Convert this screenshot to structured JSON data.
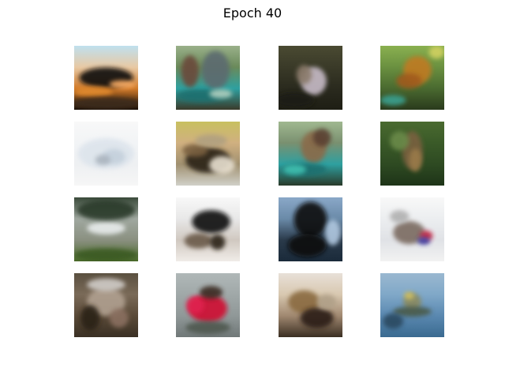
{
  "figure": {
    "title": "Epoch 40",
    "rows": 4,
    "cols": 4
  },
  "tiles": [
    {
      "name": "sample-r1c1",
      "bg": [
        "#bfe0ee",
        "#e8c9a4",
        "#d07a2a",
        "#140c06"
      ],
      "blobs": [
        [
          "#111111",
          0.5,
          0.5,
          0.42,
          0.16
        ],
        [
          "#e08a2e",
          0.3,
          0.72,
          0.3,
          0.08
        ],
        [
          "#ffb066",
          0.75,
          0.6,
          0.2,
          0.06
        ],
        [
          "#3a2a1e",
          0.5,
          0.9,
          0.55,
          0.1
        ]
      ]
    },
    {
      "name": "sample-r1c2",
      "bg": [
        "#9ab08a",
        "#6a8a5a",
        "#2ea0a0",
        "#3a3a2a"
      ],
      "blobs": [
        [
          "#5c6a70",
          0.62,
          0.38,
          0.22,
          0.3
        ],
        [
          "#1f7070",
          0.4,
          0.78,
          0.38,
          0.1
        ],
        [
          "#b0d0c0",
          0.7,
          0.75,
          0.18,
          0.07
        ],
        [
          "#6a4a3a",
          0.22,
          0.4,
          0.14,
          0.25
        ]
      ]
    },
    {
      "name": "sample-r1c3",
      "bg": [
        "#4a4a32",
        "#3a3a28",
        "#2a2a1e",
        "#1e1e14"
      ],
      "blobs": [
        [
          "#c8bcc8",
          0.55,
          0.55,
          0.2,
          0.22
        ],
        [
          "#8a7a6a",
          0.4,
          0.45,
          0.12,
          0.15
        ],
        [
          "#1a1a12",
          0.25,
          0.85,
          0.3,
          0.12
        ]
      ]
    },
    {
      "name": "sample-r1c4",
      "bg": [
        "#8ab050",
        "#6a9040",
        "#4a6a30",
        "#2a3a1c"
      ],
      "blobs": [
        [
          "#c07a20",
          0.58,
          0.38,
          0.22,
          0.22
        ],
        [
          "#a05a1a",
          0.45,
          0.55,
          0.2,
          0.12
        ],
        [
          "#d0d060",
          0.88,
          0.1,
          0.12,
          0.1
        ],
        [
          "#3aa090",
          0.2,
          0.85,
          0.2,
          0.08
        ]
      ]
    },
    {
      "name": "sample-r2c1",
      "bg": [
        "#f8f8f8",
        "#f2f4f6",
        "#eef0f2",
        "#f6f6f6"
      ],
      "blobs": [
        [
          "#dde4ec",
          0.5,
          0.5,
          0.44,
          0.24
        ],
        [
          "#c4d0dc",
          0.62,
          0.55,
          0.18,
          0.12
        ],
        [
          "#aab4be",
          0.45,
          0.6,
          0.12,
          0.08
        ]
      ]
    },
    {
      "name": "sample-r2c2",
      "bg": [
        "#c8c060",
        "#d0b080",
        "#a09070",
        "#d0d0c8"
      ],
      "blobs": [
        [
          "#2a2418",
          0.5,
          0.6,
          0.35,
          0.2
        ],
        [
          "#e8e0d0",
          0.72,
          0.68,
          0.2,
          0.14
        ],
        [
          "#7a6040",
          0.3,
          0.45,
          0.2,
          0.1
        ],
        [
          "#b0a080",
          0.55,
          0.3,
          0.25,
          0.1
        ]
      ]
    },
    {
      "name": "sample-r2c3",
      "bg": [
        "#a0b890",
        "#7a9070",
        "#2ea0a0",
        "#2a3a2a"
      ],
      "blobs": [
        [
          "#8a6a4a",
          0.55,
          0.4,
          0.2,
          0.25
        ],
        [
          "#1f7070",
          0.4,
          0.75,
          0.35,
          0.1
        ],
        [
          "#40c0b0",
          0.25,
          0.75,
          0.18,
          0.08
        ],
        [
          "#5a4030",
          0.68,
          0.25,
          0.14,
          0.14
        ]
      ]
    },
    {
      "name": "sample-r2c4",
      "bg": [
        "#4a6a30",
        "#3a5a28",
        "#2e4a22",
        "#1e3418"
      ],
      "blobs": [
        [
          "#7a6040",
          0.5,
          0.45,
          0.16,
          0.3
        ],
        [
          "#6a8a4a",
          0.3,
          0.3,
          0.15,
          0.15
        ],
        [
          "#9a7a4a",
          0.55,
          0.6,
          0.1,
          0.18
        ]
      ]
    },
    {
      "name": "sample-r3c1",
      "bg": [
        "#3a4a3a",
        "#a0a8a0",
        "#8a9080",
        "#4a6a2a"
      ],
      "blobs": [
        [
          "#e8ecec",
          0.5,
          0.48,
          0.3,
          0.1
        ],
        [
          "#2a3a2a",
          0.5,
          0.2,
          0.45,
          0.16
        ],
        [
          "#3a5a20",
          0.5,
          0.9,
          0.5,
          0.1
        ]
      ]
    },
    {
      "name": "sample-r3c2",
      "bg": [
        "#f8f8f8",
        "#e8e8e8",
        "#d0c8c0",
        "#f0ece8"
      ],
      "blobs": [
        [
          "#101010",
          0.55,
          0.38,
          0.3,
          0.18
        ],
        [
          "#6a5a4a",
          0.35,
          0.68,
          0.22,
          0.12
        ],
        [
          "#2a2018",
          0.65,
          0.7,
          0.12,
          0.12
        ]
      ]
    },
    {
      "name": "sample-r3c3",
      "bg": [
        "#8aa8c8",
        "#6a8aa8",
        "#2a3a4a",
        "#1a2a3a"
      ],
      "blobs": [
        [
          "#0e0e0e",
          0.5,
          0.35,
          0.26,
          0.28
        ],
        [
          "#0e0e0e",
          0.45,
          0.75,
          0.3,
          0.18
        ],
        [
          "#b0c8e0",
          0.85,
          0.55,
          0.12,
          0.2
        ]
      ]
    },
    {
      "name": "sample-r3c4",
      "bg": [
        "#f8f8f8",
        "#eceef0",
        "#e0e2e6",
        "#f2f2f2"
      ],
      "blobs": [
        [
          "#7a6a60",
          0.45,
          0.55,
          0.25,
          0.18
        ],
        [
          "#c02040",
          0.72,
          0.6,
          0.1,
          0.08
        ],
        [
          "#3a3aa0",
          0.68,
          0.68,
          0.1,
          0.06
        ],
        [
          "#b0b0b0",
          0.3,
          0.3,
          0.15,
          0.1
        ]
      ]
    },
    {
      "name": "sample-r4c1",
      "bg": [
        "#5a5040",
        "#7a6a58",
        "#5a4a38",
        "#3a3024"
      ],
      "blobs": [
        [
          "#b0a090",
          0.5,
          0.45,
          0.3,
          0.22
        ],
        [
          "#2a2018",
          0.25,
          0.7,
          0.15,
          0.2
        ],
        [
          "#8a7060",
          0.7,
          0.7,
          0.15,
          0.15
        ],
        [
          "#d0ccc8",
          0.5,
          0.18,
          0.3,
          0.1
        ]
      ]
    },
    {
      "name": "sample-r4c2",
      "bg": [
        "#b0b8b8",
        "#a0a8a8",
        "#909898",
        "#707878"
      ],
      "blobs": [
        [
          "#d01030",
          0.5,
          0.55,
          0.3,
          0.22
        ],
        [
          "#e02050",
          0.3,
          0.5,
          0.14,
          0.14
        ],
        [
          "#3a2a20",
          0.55,
          0.3,
          0.18,
          0.1
        ],
        [
          "#505850",
          0.5,
          0.85,
          0.35,
          0.1
        ]
      ]
    },
    {
      "name": "sample-r4c3",
      "bg": [
        "#e8e0d8",
        "#d8c8b0",
        "#a08870",
        "#3a2e22"
      ],
      "blobs": [
        [
          "#8a6a40",
          0.4,
          0.45,
          0.25,
          0.18
        ],
        [
          "#2a1e14",
          0.6,
          0.7,
          0.26,
          0.16
        ],
        [
          "#b0a088",
          0.75,
          0.45,
          0.15,
          0.12
        ]
      ]
    },
    {
      "name": "sample-r4c4",
      "bg": [
        "#9ab8d0",
        "#80a8c8",
        "#5a88b0",
        "#3a6a90"
      ],
      "blobs": [
        [
          "#8a8a60",
          0.5,
          0.45,
          0.14,
          0.14
        ],
        [
          "#4a5a4a",
          0.5,
          0.6,
          0.3,
          0.08
        ],
        [
          "#d0c060",
          0.45,
          0.35,
          0.08,
          0.06
        ],
        [
          "#2a4a60",
          0.2,
          0.75,
          0.16,
          0.12
        ]
      ]
    }
  ]
}
